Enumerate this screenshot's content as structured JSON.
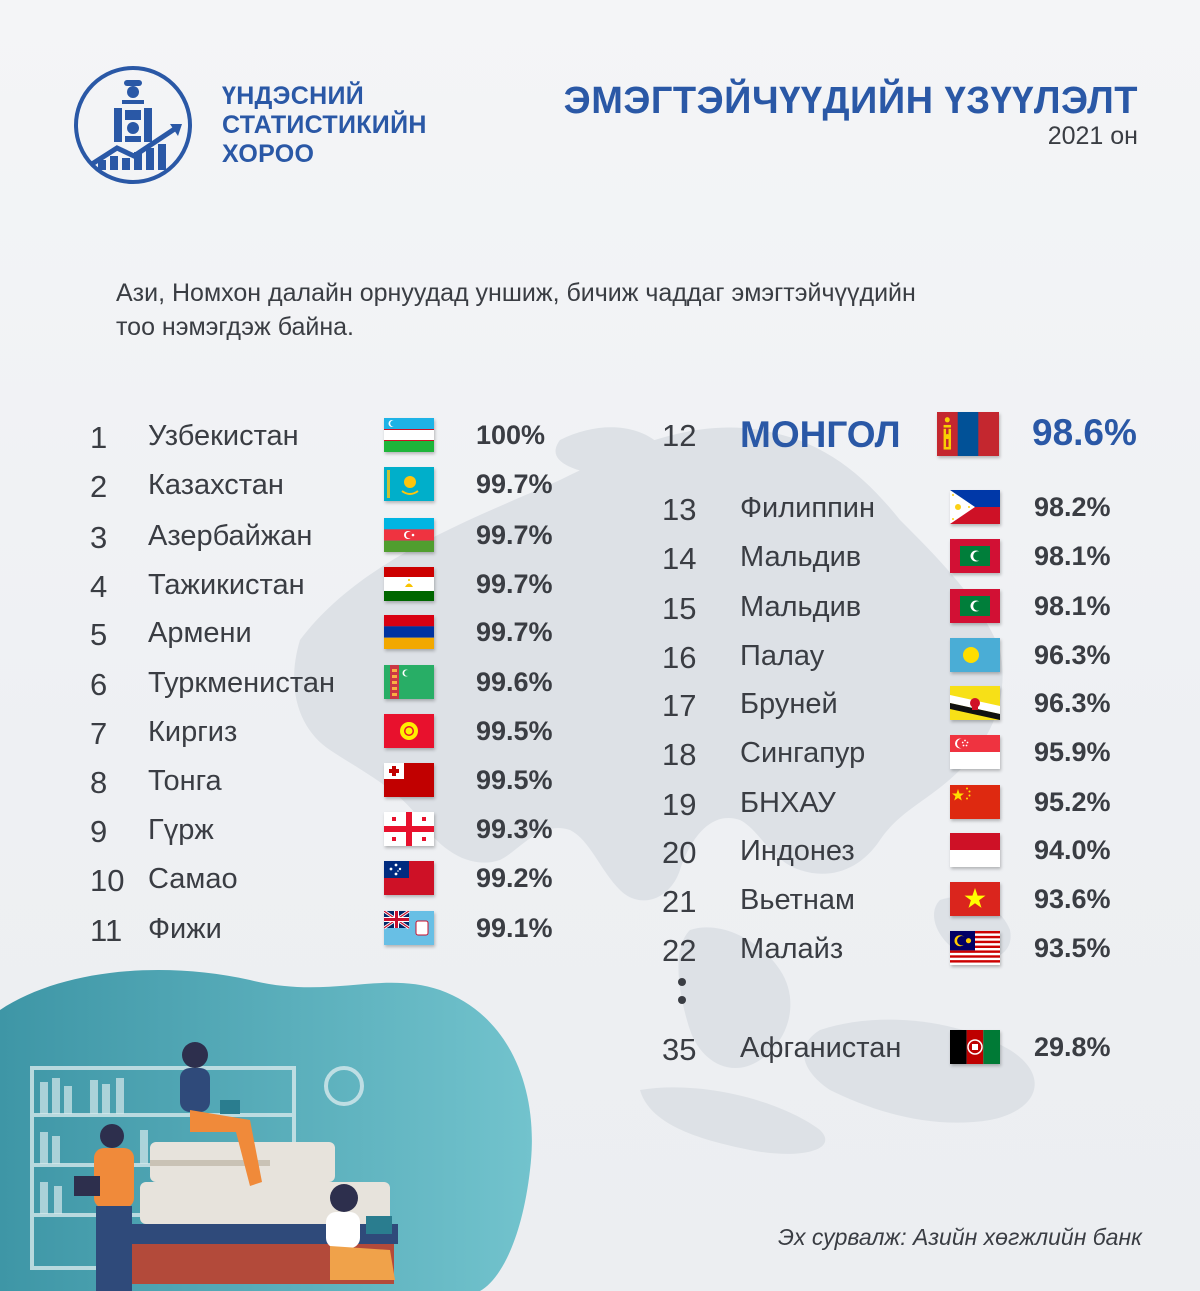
{
  "header": {
    "org_lines": [
      "ҮНДЭСНИЙ",
      "СТАТИСТИКИЙН",
      "ХОРОО"
    ],
    "title": "ЭМЭГТЭЙЧҮҮДИЙН ҮЗҮҮЛЭЛТ",
    "year": "2021 он"
  },
  "subtitle_lines": [
    "Ази, Номхон далайн орнуудад уншиж, бичиж чаддаг эмэгтэйчүүдийн",
    "тоо нэмэгдэж байна."
  ],
  "left_list": [
    {
      "rank": "1",
      "name": "Узбекистан",
      "value": "100%",
      "flag_icon": "uzbekistan-flag"
    },
    {
      "rank": "2",
      "name": "Казахстан",
      "value": "99.7%",
      "flag_icon": "kazakhstan-flag"
    },
    {
      "rank": "3",
      "name": "Азербайжан",
      "value": "99.7%",
      "flag_icon": "azerbaijan-flag"
    },
    {
      "rank": "4",
      "name": "Тажикистан",
      "value": "99.7%",
      "flag_icon": "tajikistan-flag"
    },
    {
      "rank": "5",
      "name": "Армени",
      "value": "99.7%",
      "flag_icon": "armenia-flag"
    },
    {
      "rank": "6",
      "name": "Туркменистан",
      "value": "99.6%",
      "flag_icon": "turkmenistan-flag"
    },
    {
      "rank": "7",
      "name": "Киргиз",
      "value": "99.5%",
      "flag_icon": "kyrgyzstan-flag"
    },
    {
      "rank": "8",
      "name": "Тонга",
      "value": "99.5%",
      "flag_icon": "tonga-flag"
    },
    {
      "rank": "9",
      "name": "Гүрж",
      "value": "99.3%",
      "flag_icon": "georgia-flag"
    },
    {
      "rank": "10",
      "name": "Самао",
      "value": "99.2%",
      "flag_icon": "samoa-flag"
    },
    {
      "rank": "11",
      "name": "Фижи",
      "value": "99.1%",
      "flag_icon": "fiji-flag"
    }
  ],
  "right_list": [
    {
      "rank": "12",
      "name": "МОНГОЛ",
      "value": "98.6%",
      "flag_icon": "mongolia-flag",
      "highlight": true
    },
    {
      "rank": "13",
      "name": "Филиппин",
      "value": "98.2%",
      "flag_icon": "philippines-flag"
    },
    {
      "rank": "14",
      "name": "Мальдив",
      "value": "98.1%",
      "flag_icon": "maldives-flag"
    },
    {
      "rank": "15",
      "name": "Мальдив",
      "value": "98.1%",
      "flag_icon": "maldives-flag"
    },
    {
      "rank": "16",
      "name": "Палау",
      "value": "96.3%",
      "flag_icon": "palau-flag"
    },
    {
      "rank": "17",
      "name": "Бруней",
      "value": "96.3%",
      "flag_icon": "brunei-flag"
    },
    {
      "rank": "18",
      "name": "Сингапур",
      "value": "95.9%",
      "flag_icon": "singapore-flag"
    },
    {
      "rank": "19",
      "name": "БНХАУ",
      "value": "95.2%",
      "flag_icon": "china-flag"
    },
    {
      "rank": "20",
      "name": "Индонез",
      "value": "94.0%",
      "flag_icon": "indonesia-flag"
    },
    {
      "rank": "21",
      "name": "Вьетнам",
      "value": "93.6%",
      "flag_icon": "vietnam-flag"
    },
    {
      "rank": "22",
      "name": "Малайз",
      "value": "93.5%",
      "flag_icon": "malaysia-flag"
    },
    {
      "rank": "35",
      "name": "Афганистан",
      "value": "29.8%",
      "flag_icon": "afghanistan-flag"
    }
  ],
  "source": "Эх сурвалж: Азийн хөгжлийн банк",
  "colors": {
    "accent": "#2a58a6",
    "text": "#3a3d43",
    "map": "#dfe3e8",
    "teal": "#4fb0bf"
  }
}
